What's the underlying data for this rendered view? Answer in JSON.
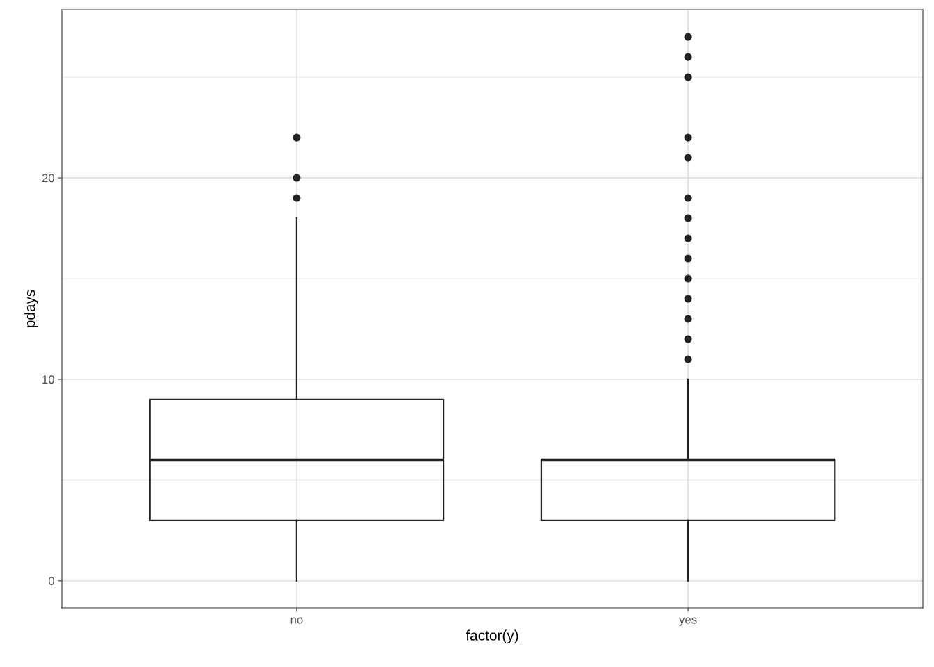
{
  "chart_data": {
    "type": "box",
    "xlabel": "factor(y)",
    "ylabel": "pdays",
    "categories": [
      "no",
      "yes"
    ],
    "boxes": [
      {
        "low": 0,
        "q1": 3,
        "median": 6,
        "q3": 9,
        "high": 18,
        "outliers": [
          19,
          20,
          22
        ]
      },
      {
        "low": 0,
        "q1": 3,
        "median": 6,
        "q3": 6,
        "high": 10,
        "outliers": [
          11,
          12,
          13,
          14,
          15,
          16,
          17,
          18,
          19,
          21,
          22,
          25,
          26,
          27
        ]
      }
    ],
    "color": "#222222",
    "ylim": [
      -1.35,
      28.35
    ],
    "yticks": [
      0,
      10,
      20
    ],
    "grid": true
  }
}
